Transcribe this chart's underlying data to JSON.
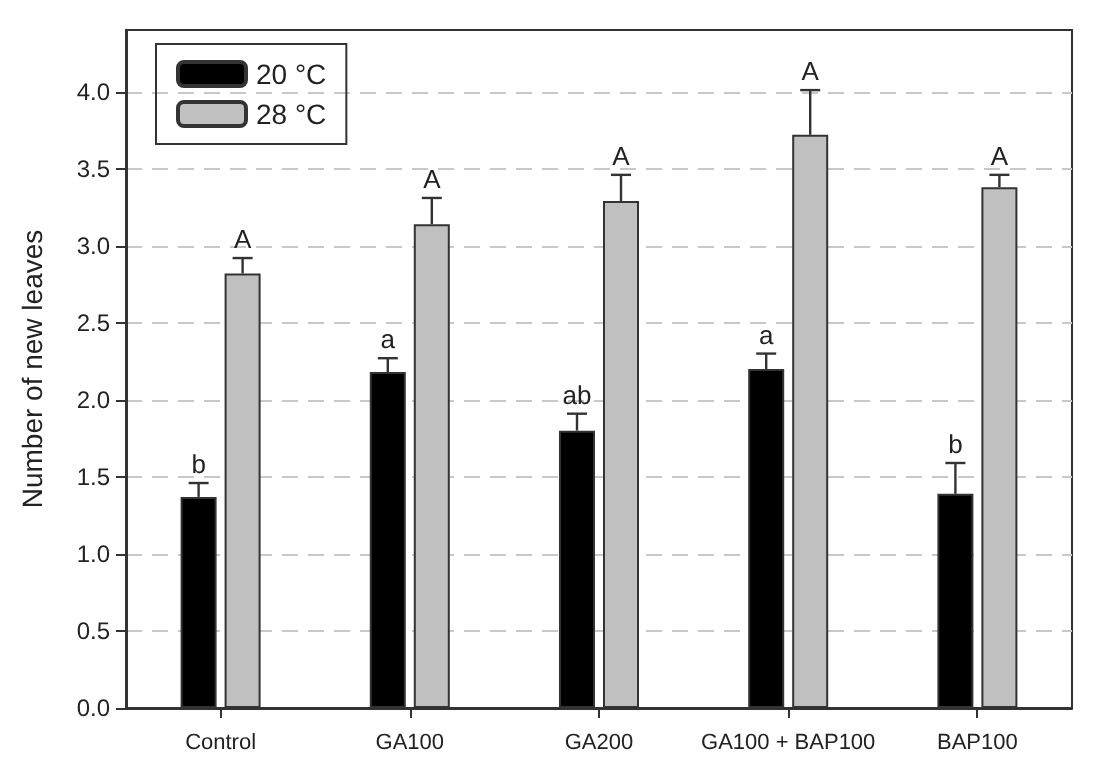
{
  "chart_data": {
    "type": "bar",
    "ylabel": "Number of new leaves",
    "categories": [
      "Control",
      "GA100",
      "GA200",
      "GA100 + BAP100",
      "BAP100"
    ],
    "series": [
      {
        "name": "20 °C",
        "color": "#000000",
        "values": [
          1.37,
          2.18,
          1.8,
          2.2,
          1.39
        ],
        "errors": [
          [
            1.37,
            1.46
          ],
          [
            2.18,
            2.27
          ],
          [
            1.8,
            1.91
          ],
          [
            2.2,
            2.3
          ],
          [
            1.39,
            1.59
          ]
        ]
      },
      {
        "name": "28 °C",
        "color": "#c0c0c0",
        "values": [
          2.82,
          3.14,
          3.29,
          3.72,
          3.38
        ],
        "errors": [
          [
            2.82,
            2.92
          ],
          [
            3.14,
            3.31
          ],
          [
            3.29,
            3.46
          ],
          [
            3.72,
            4.01
          ],
          [
            3.38,
            3.46
          ]
        ]
      }
    ],
    "annotations": [
      "b",
      "A",
      "a",
      "A",
      "ab",
      "A",
      "a",
      "A",
      "b",
      "A"
    ],
    "ylim": [
      0,
      4.4
    ],
    "yticks": [
      {
        "value": 0,
        "label": "0.0"
      },
      {
        "value": 0.5,
        "label": "0.5"
      },
      {
        "value": 1,
        "label": "1.0"
      },
      {
        "value": 1.5,
        "label": "1.5"
      },
      {
        "value": 2,
        "label": "2.0"
      },
      {
        "value": 2.5,
        "label": "2.5"
      },
      {
        "value": 3,
        "label": "3.0"
      },
      {
        "value": 3.5,
        "label": "3.5"
      },
      {
        "value": 4,
        "label": "4.0"
      }
    ],
    "grid": "y",
    "legend": "top left"
  }
}
